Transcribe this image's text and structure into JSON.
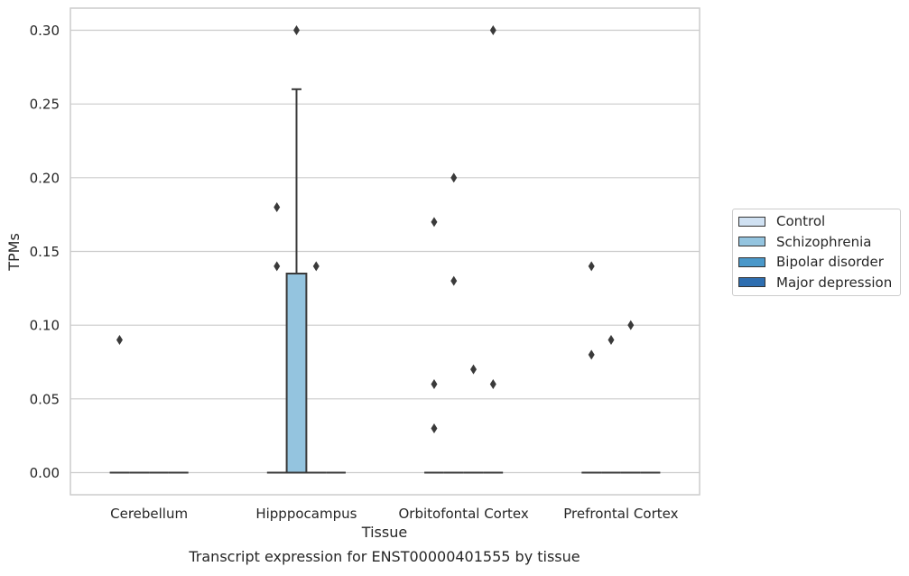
{
  "chart_data": {
    "type": "box",
    "title": "Transcript expression for ENST00000401555 by tissue",
    "xlabel": "Tissue",
    "ylabel": "TPMs",
    "ylim": [
      -0.015,
      0.315
    ],
    "yticks": [
      "0.00",
      "0.05",
      "0.10",
      "0.15",
      "0.20",
      "0.25",
      "0.30"
    ],
    "yticks_values": [
      0,
      0.05,
      0.1,
      0.15,
      0.2,
      0.25,
      0.3
    ],
    "categories": [
      "Cerebellum",
      "Hipppocampus",
      "Orbitofontal Cortex",
      "Prefrontal Cortex"
    ],
    "grid": "horizontal",
    "legend_position": "right",
    "series": [
      {
        "name": "Control",
        "color": "#d0e1f2",
        "boxes": [
          {
            "category": "Cerebellum",
            "q1": 0,
            "median": 0,
            "q3": 0,
            "whisker_low": 0,
            "whisker_high": 0,
            "outliers": [
              0.09
            ]
          },
          {
            "category": "Hipppocampus",
            "q1": 0,
            "median": 0,
            "q3": 0,
            "whisker_low": 0,
            "whisker_high": 0,
            "outliers": [
              0.18,
              0.14
            ]
          },
          {
            "category": "Orbitofontal Cortex",
            "q1": 0,
            "median": 0,
            "q3": 0,
            "whisker_low": 0,
            "whisker_high": 0,
            "outliers": [
              0.17,
              0.06,
              0.03
            ]
          },
          {
            "category": "Prefrontal Cortex",
            "q1": 0,
            "median": 0,
            "q3": 0,
            "whisker_low": 0,
            "whisker_high": 0,
            "outliers": [
              0.14,
              0.08
            ]
          }
        ]
      },
      {
        "name": "Schizophrenia",
        "color": "#94c4df",
        "boxes": [
          {
            "category": "Cerebellum",
            "q1": 0,
            "median": 0,
            "q3": 0,
            "whisker_low": 0,
            "whisker_high": 0,
            "outliers": []
          },
          {
            "category": "Hipppocampus",
            "q1": 0,
            "median": 0,
            "q3": 0.135,
            "whisker_low": 0,
            "whisker_high": 0.26,
            "outliers": [
              0.3
            ]
          },
          {
            "category": "Orbitofontal Cortex",
            "q1": 0,
            "median": 0,
            "q3": 0,
            "whisker_low": 0,
            "whisker_high": 0,
            "outliers": [
              0.2,
              0.13
            ]
          },
          {
            "category": "Prefrontal Cortex",
            "q1": 0,
            "median": 0,
            "q3": 0,
            "whisker_low": 0,
            "whisker_high": 0,
            "outliers": [
              0.09
            ]
          }
        ]
      },
      {
        "name": "Bipolar disorder",
        "color": "#4a98c9",
        "boxes": [
          {
            "category": "Cerebellum",
            "q1": 0,
            "median": 0,
            "q3": 0,
            "whisker_low": 0,
            "whisker_high": 0,
            "outliers": []
          },
          {
            "category": "Hipppocampus",
            "q1": 0,
            "median": 0,
            "q3": 0,
            "whisker_low": 0,
            "whisker_high": 0,
            "outliers": [
              0.14
            ]
          },
          {
            "category": "Orbitofontal Cortex",
            "q1": 0,
            "median": 0,
            "q3": 0,
            "whisker_low": 0,
            "whisker_high": 0,
            "outliers": [
              0.07
            ]
          },
          {
            "category": "Prefrontal Cortex",
            "q1": 0,
            "median": 0,
            "q3": 0,
            "whisker_low": 0,
            "whisker_high": 0,
            "outliers": [
              0.1
            ]
          }
        ]
      },
      {
        "name": "Major depression",
        "color": "#2e6eb0",
        "boxes": [
          {
            "category": "Cerebellum",
            "q1": 0,
            "median": 0,
            "q3": 0,
            "whisker_low": 0,
            "whisker_high": 0,
            "outliers": []
          },
          {
            "category": "Hipppocampus",
            "q1": 0,
            "median": 0,
            "q3": 0,
            "whisker_low": 0,
            "whisker_high": 0,
            "outliers": []
          },
          {
            "category": "Orbitofontal Cortex",
            "q1": 0,
            "median": 0,
            "q3": 0,
            "whisker_low": 0,
            "whisker_high": 0,
            "outliers": [
              0.3,
              0.06
            ]
          },
          {
            "category": "Prefrontal Cortex",
            "q1": 0,
            "median": 0,
            "q3": 0,
            "whisker_low": 0,
            "whisker_high": 0,
            "outliers": []
          }
        ]
      }
    ]
  }
}
